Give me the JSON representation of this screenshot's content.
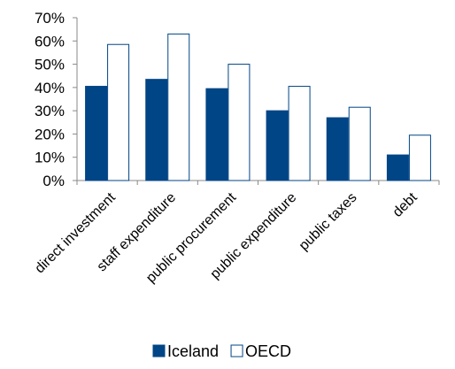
{
  "chart_data": {
    "type": "bar",
    "title": "",
    "xlabel": "",
    "ylabel": "",
    "categories": [
      "direct investment",
      "staff expenditure",
      "public procurement",
      "public expenditure",
      "public taxes",
      "debt"
    ],
    "series": [
      {
        "name": "Iceland",
        "values": [
          40.5,
          43.5,
          39.5,
          30,
          27,
          11
        ],
        "fill": "#004586",
        "stroke": "#004586"
      },
      {
        "name": "OECD",
        "values": [
          58.5,
          63,
          50,
          40.5,
          31.5,
          19.5
        ],
        "fill": "#ffffff",
        "stroke": "#004586"
      }
    ],
    "ylim": [
      0,
      70
    ],
    "y_ticks": [
      "0%",
      "10%",
      "20%",
      "30%",
      "40%",
      "50%",
      "60%",
      "70%"
    ],
    "y_format": "percent",
    "grid": false,
    "legend_position": "bottom"
  }
}
